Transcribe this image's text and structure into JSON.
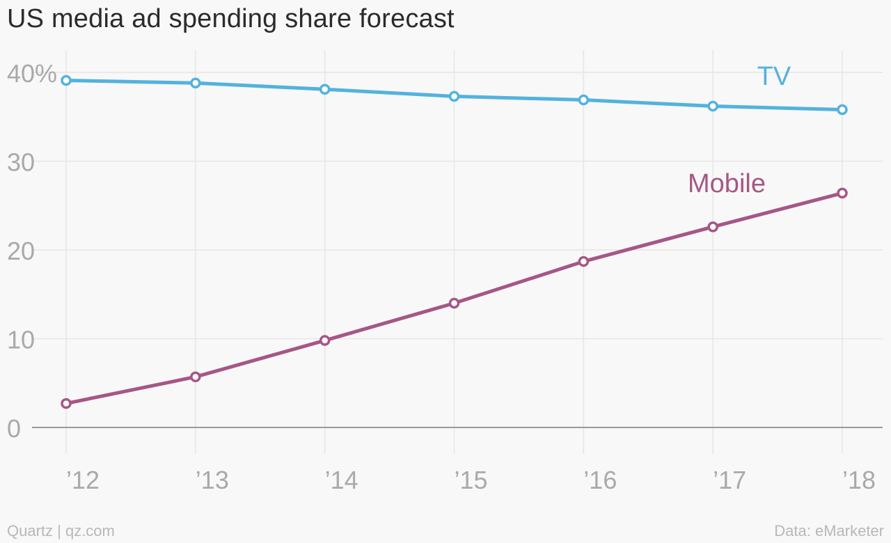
{
  "title": "US media ad spending share forecast",
  "footer": {
    "source_credit": "Quartz | qz.com",
    "data_credit": "Data: eMarketer"
  },
  "chart_data": {
    "type": "line",
    "x": [
      2012,
      2013,
      2014,
      2015,
      2016,
      2017,
      2018
    ],
    "x_tick_labels": [
      "’12",
      "’13",
      "’14",
      "’15",
      "’16",
      "’17",
      "’18"
    ],
    "y_ticks": [
      0,
      10,
      20,
      30,
      40
    ],
    "y_tick_labels": [
      "0",
      "10",
      "20",
      "30",
      "40%"
    ],
    "ylim": [
      0,
      40
    ],
    "grid": true,
    "series": [
      {
        "name": "TV",
        "color": "#53b2de",
        "values": [
          39.1,
          38.8,
          38.1,
          37.3,
          36.9,
          36.2,
          35.8
        ]
      },
      {
        "name": "Mobile",
        "color": "#a65686",
        "values": [
          2.7,
          5.7,
          9.8,
          14.0,
          18.7,
          22.6,
          26.4
        ]
      }
    ]
  }
}
